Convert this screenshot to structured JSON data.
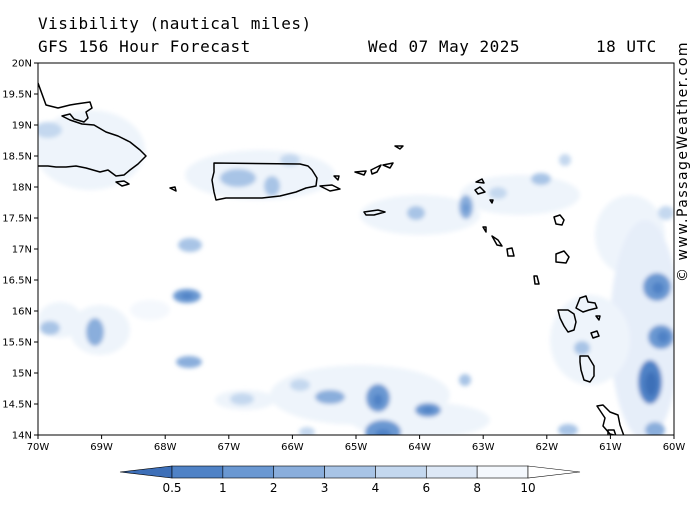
{
  "header": {
    "title": "Visibility (nautical miles)",
    "subtitle": "GFS 156 Hour Forecast",
    "date": "Wed 07 May 2025",
    "time": "18 UTC"
  },
  "credit": "© www.PassageWeather.com",
  "map": {
    "lon_range": [
      -70,
      -60
    ],
    "lat_range": [
      14,
      20
    ],
    "lon_labels": [
      "70W",
      "69W",
      "68W",
      "67W",
      "66W",
      "65W",
      "64W",
      "63W",
      "62W",
      "61W",
      "60W"
    ],
    "lat_labels": [
      "20N",
      "19.5N",
      "19N",
      "18.5N",
      "18N",
      "17.5N",
      "17N",
      "16.5N",
      "16N",
      "15.5N",
      "15N",
      "14.5N",
      "14N"
    ]
  },
  "legend": {
    "labels": [
      "0.5",
      "1",
      "2",
      "3",
      "4",
      "6",
      "8",
      "10"
    ],
    "colors": [
      "#3d6fb8",
      "#4f82c6",
      "#6a98d2",
      "#8aaedc",
      "#a8c4e6",
      "#c4d8ef",
      "#dde8f6",
      "#f4f8fd",
      "#ffffff"
    ]
  },
  "chart_data": {
    "type": "heatmap",
    "title": "Visibility (nautical miles)",
    "subtitle": "GFS 156 Hour Forecast",
    "valid_time": "Wed 07 May 2025 18 UTC",
    "x_range_lon": [
      -70,
      -60
    ],
    "y_range_lat": [
      14,
      20
    ],
    "levels": [
      0.5,
      1,
      2,
      3,
      4,
      6,
      8,
      10
    ],
    "low_visibility_patches": [
      {
        "lon": -69.85,
        "lat": 19.0,
        "min_vis": 6
      },
      {
        "lon": -69.15,
        "lat": 18.2,
        "min_vis": 8
      },
      {
        "lon": -67.7,
        "lat": 17.25,
        "min_vis": 4
      },
      {
        "lon": -67.65,
        "lat": 16.5,
        "min_vis": 2
      },
      {
        "lon": -69.2,
        "lat": 15.95,
        "min_vis": 3
      },
      {
        "lon": -69.8,
        "lat": 16.0,
        "min_vis": 4
      },
      {
        "lon": -67.7,
        "lat": 15.5,
        "min_vis": 3
      },
      {
        "lon": -66.9,
        "lat": 18.25,
        "min_vis": 3
      },
      {
        "lon": -66.0,
        "lat": 18.55,
        "min_vis": 4
      },
      {
        "lon": -63.3,
        "lat": 17.9,
        "min_vis": 3
      },
      {
        "lon": -64.0,
        "lat": 17.8,
        "min_vis": 4
      },
      {
        "lon": -62.6,
        "lat": 18.0,
        "min_vis": 6
      },
      {
        "lon": -62.0,
        "lat": 18.25,
        "min_vis": 4
      },
      {
        "lon": -64.8,
        "lat": 15.05,
        "min_vis": 2
      },
      {
        "lon": -64.5,
        "lat": 14.6,
        "min_vis": 2
      },
      {
        "lon": -64.0,
        "lat": 14.8,
        "min_vis": 2
      },
      {
        "lon": -65.5,
        "lat": 15.0,
        "min_vis": 3
      },
      {
        "lon": -63.25,
        "lat": 15.25,
        "min_vis": 4
      },
      {
        "lon": -60.2,
        "lat": 16.6,
        "min_vis": 2
      },
      {
        "lon": -60.1,
        "lat": 15.9,
        "min_vis": 2
      },
      {
        "lon": -60.35,
        "lat": 15.1,
        "min_vis": 1
      },
      {
        "lon": -61.5,
        "lat": 15.6,
        "min_vis": 4
      },
      {
        "lon": -61.75,
        "lat": 14.5,
        "min_vis": 4
      },
      {
        "lon": -60.3,
        "lat": 14.05,
        "min_vis": 3
      }
    ]
  }
}
